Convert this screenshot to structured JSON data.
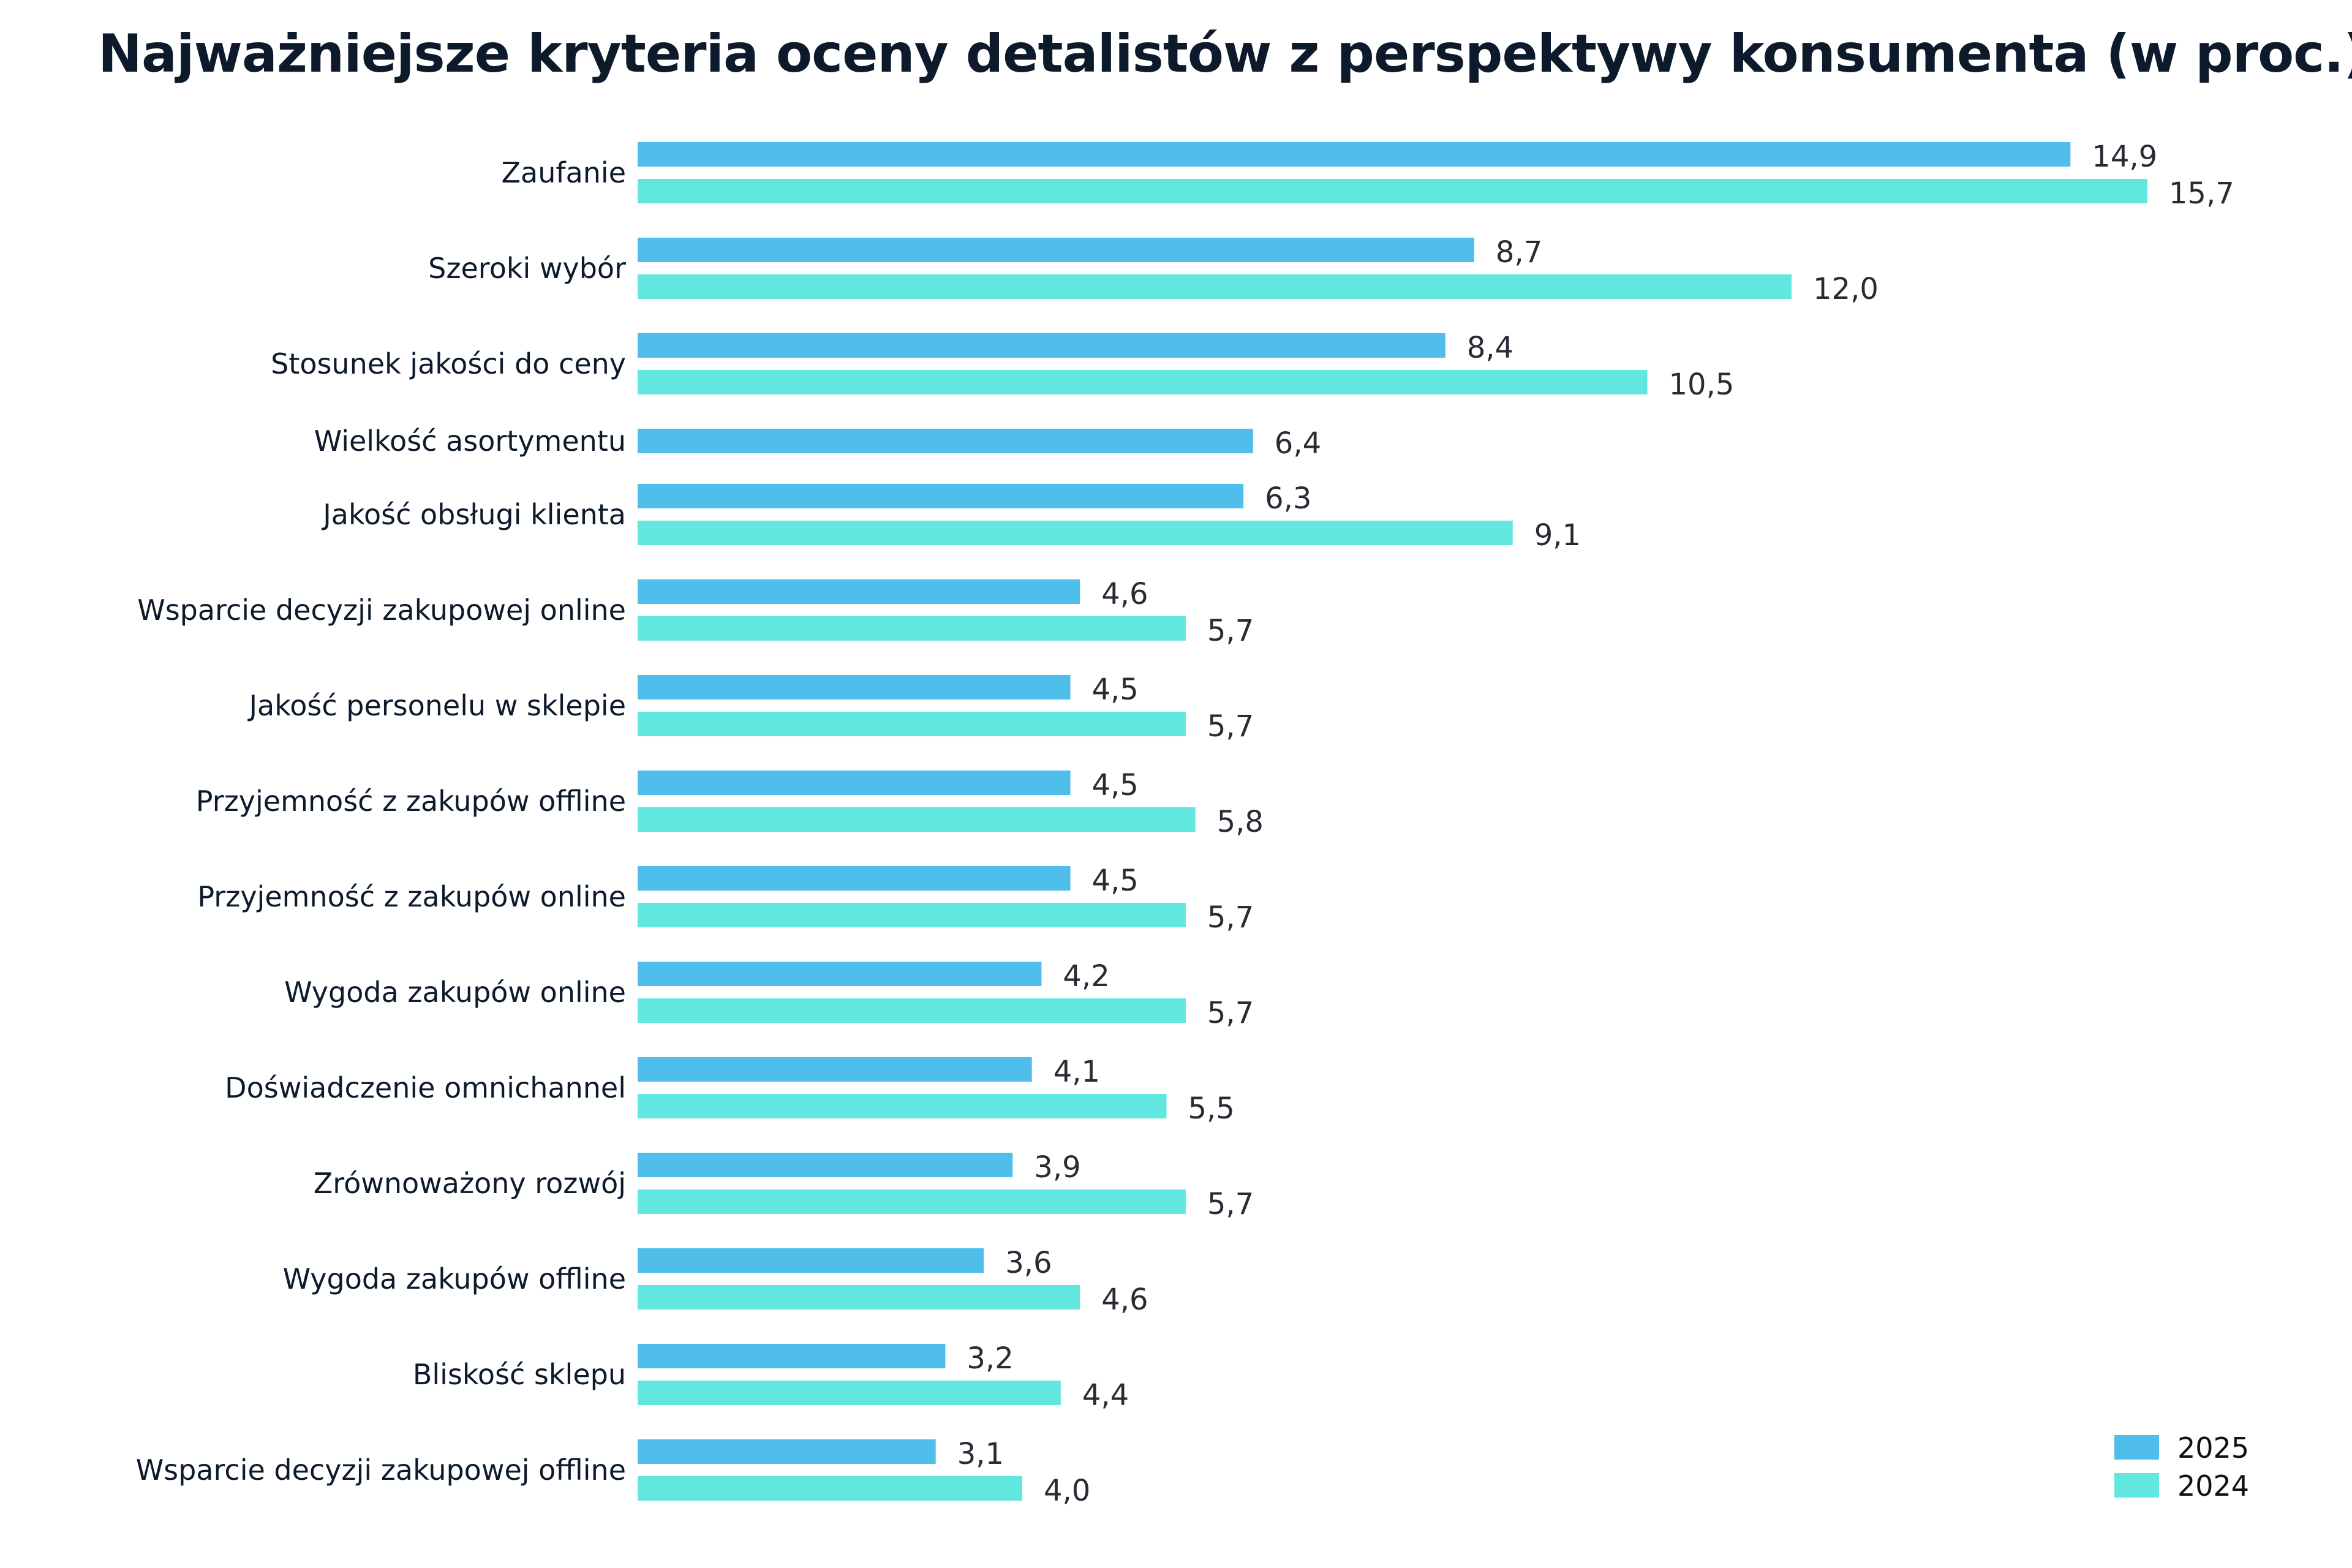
{
  "chart_data": {
    "type": "bar",
    "orientation": "horizontal",
    "title": "Najważniejsze kryteria oceny detalistów z perspektywy konsumenta (w proc.)",
    "xlabel": "",
    "ylabel": "",
    "grid": false,
    "legend_position": "bottom-right",
    "categories": [
      "Zaufanie",
      "Szeroki wybór",
      "Stosunek jakości do ceny",
      "Wielkość asortymentu",
      "Jakość obsługi klienta",
      "Wsparcie decyzji zakupowej online",
      "Jakość personelu w sklepie",
      "Przyjemność z zakupów offline",
      "Przyjemność z zakupów online",
      "Wygoda zakupów online",
      "Doświadczenie omnichannel",
      "Zrównoważony rozwój",
      "Wygoda zakupów offline",
      "Bliskość sklepu",
      "Wsparcie decyzji zakupowej offline"
    ],
    "series": [
      {
        "name": "2025",
        "color": "#4fbeea",
        "values": [
          14.9,
          8.7,
          8.4,
          6.4,
          6.3,
          4.6,
          4.5,
          4.5,
          4.5,
          4.2,
          4.1,
          3.9,
          3.6,
          3.2,
          3.1
        ],
        "labels": [
          "14,9",
          "8,7",
          "8,4",
          "6,4",
          "6,3",
          "4,6",
          "4,5",
          "4,5",
          "4,5",
          "4,2",
          "4,1",
          "3,9",
          "3,6",
          "3,2",
          "3,1"
        ]
      },
      {
        "name": "2024",
        "color": "#61e6e0",
        "values": [
          15.7,
          12.0,
          10.5,
          null,
          9.1,
          5.7,
          5.7,
          5.8,
          5.7,
          5.7,
          5.5,
          5.7,
          4.6,
          4.4,
          4.0
        ],
        "labels": [
          "15,7",
          "12,0",
          "10,5",
          null,
          "9,1",
          "5,7",
          "5,7",
          "5,8",
          "5,7",
          "5,7",
          "5,5",
          "5,7",
          "4,6",
          "4,4",
          "4,0"
        ]
      }
    ]
  }
}
